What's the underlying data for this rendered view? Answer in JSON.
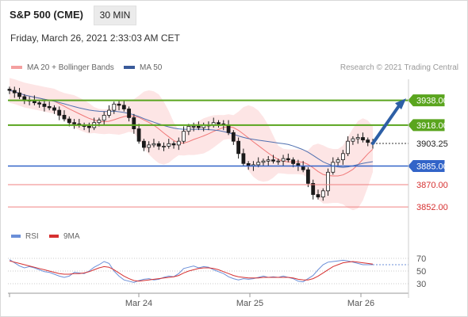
{
  "header": {
    "title": "S&P 500 (CME)",
    "interval": "30 MIN",
    "datetime": "Friday, March 26, 2021 2:33:03 AM CET",
    "credit": "Research © 2021 Trading Central"
  },
  "legend": {
    "bollinger": "MA 20 + Bollinger Bands",
    "ma50": "MA 50",
    "rsi": "RSI",
    "ma9": "9MA"
  },
  "colors": {
    "resistance": "#5aa51e",
    "support_red": "#f08080",
    "pivot": "#3264c8",
    "arrow": "#2d5fa6",
    "band": "#fde0e0",
    "ma20": "#f07878",
    "ma50": "#5070b0",
    "candle": "#1a1a1a",
    "rsi": "#6b8fd8",
    "rsi_ma": "#d63030"
  },
  "chart_data": [
    {
      "type": "candlestick",
      "title": "S&P 500 (CME)",
      "ylim": [
        3837,
        3955
      ],
      "x_ticks": [
        "Mar 24",
        "Mar 25",
        "Mar 26"
      ],
      "close_series": [
        3946,
        3944,
        3941,
        3938,
        3938,
        3936,
        3935,
        3933,
        3932,
        3930,
        3926,
        3923,
        3920,
        3919,
        3918,
        3917,
        3916,
        3920,
        3922,
        3926,
        3930,
        3935,
        3934,
        3931,
        3924,
        3915,
        3905,
        3900,
        3902,
        3903,
        3901,
        3901,
        3903,
        3902,
        3905,
        3913,
        3917,
        3917,
        3916,
        3918,
        3918,
        3920,
        3919,
        3918,
        3912,
        3905,
        3895,
        3887,
        3885,
        3886,
        3888,
        3889,
        3890,
        3889,
        3889,
        3891,
        3890,
        3887,
        3885,
        3882,
        3871,
        3862,
        3860,
        3865,
        3880,
        3888,
        3890,
        3895,
        3905,
        3907,
        3908,
        3906,
        3904,
        3903
      ],
      "levels": [
        {
          "label": "3938.00",
          "value": 3938,
          "style": "resistance"
        },
        {
          "label": "3918.00",
          "value": 3918,
          "style": "resistance"
        },
        {
          "label": "3903.25",
          "value": 3903.25,
          "style": "current"
        },
        {
          "label": "3885.00",
          "value": 3885,
          "style": "pivot"
        },
        {
          "label": "3870.00",
          "value": 3870,
          "style": "support"
        },
        {
          "label": "3852.00",
          "value": 3852,
          "style": "support"
        }
      ]
    },
    {
      "type": "line",
      "series": [
        {
          "name": "RSI",
          "values": [
            68,
            63,
            58,
            55,
            57,
            55,
            52,
            49,
            48,
            45,
            42,
            40,
            42,
            48,
            47,
            46,
            50,
            56,
            60,
            65,
            62,
            50,
            42,
            36,
            34,
            32,
            35,
            37,
            38,
            36,
            37,
            40,
            42,
            41,
            46,
            54,
            56,
            58,
            55,
            57,
            56,
            52,
            49,
            46,
            41,
            38,
            36,
            38,
            37,
            38,
            40,
            42,
            40,
            41,
            40,
            42,
            40,
            38,
            34,
            33,
            38,
            43,
            52,
            60,
            64,
            65,
            66,
            67,
            66,
            64,
            62,
            60,
            60,
            60
          ]
        },
        {
          "name": "9MA",
          "values": [
            66,
            64,
            62,
            60,
            58,
            56,
            54,
            52,
            50,
            48,
            46,
            45,
            45,
            46,
            46,
            47,
            49,
            52,
            55,
            57,
            56,
            52,
            47,
            42,
            38,
            35,
            34,
            35,
            36,
            37,
            38,
            39,
            40,
            41,
            43,
            47,
            50,
            52,
            54,
            55,
            55,
            54,
            52,
            49,
            46,
            43,
            41,
            40,
            39,
            39,
            39,
            40,
            40,
            40,
            40,
            40,
            40,
            39,
            37,
            36,
            36,
            38,
            42,
            47,
            52,
            57,
            60,
            63,
            64,
            65,
            64,
            63,
            62,
            61
          ]
        }
      ],
      "y_ticks": [
        "70",
        "50",
        "30"
      ],
      "ylim": [
        20,
        80
      ]
    }
  ]
}
